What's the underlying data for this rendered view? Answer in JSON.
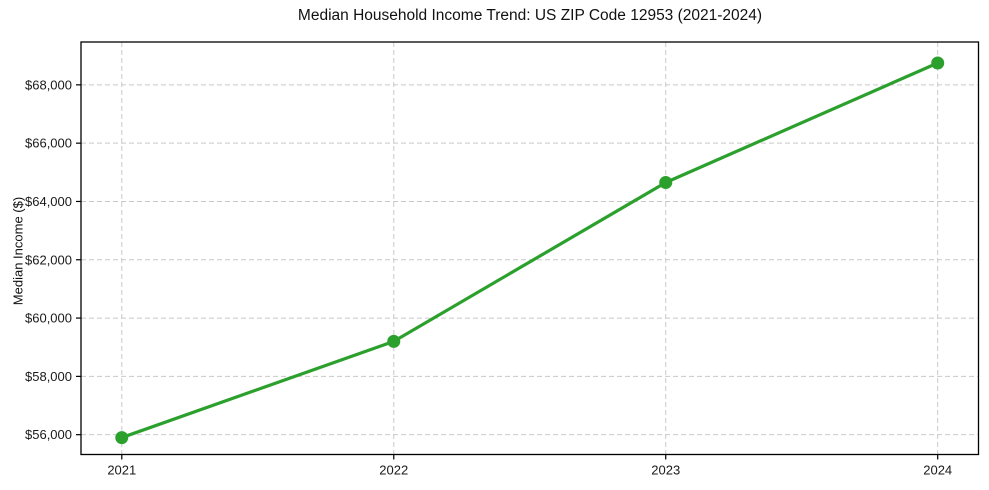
{
  "figure": {
    "background": "#ffffff"
  },
  "chart_data": {
    "type": "line",
    "title": "Median Household Income Trend: US ZIP Code 12953 (2021-2024)",
    "xlabel": "",
    "ylabel": "Median Income ($)",
    "x": [
      2021,
      2022,
      2023,
      2024
    ],
    "xtick_labels": [
      "2021",
      "2022",
      "2023",
      "2024"
    ],
    "series": [
      {
        "name": "Median Household Income",
        "values": [
          55900,
          59200,
          64650,
          68750
        ],
        "color": "#2ca02c",
        "marker": "circle",
        "line_style": "solid"
      }
    ],
    "yticks": [
      56000,
      58000,
      60000,
      62000,
      64000,
      66000,
      68000
    ],
    "ytick_labels": [
      "$56,000",
      "$58,000",
      "$60,000",
      "$62,000",
      "$64,000",
      "$66,000",
      "$68,000"
    ],
    "xlim": [
      2020.85,
      2024.15
    ],
    "ylim": [
      55320,
      69470
    ],
    "grid": true,
    "grid_style": "dashed",
    "legend": "none",
    "axis_color": "#000000",
    "grid_color": "#c9c9c9",
    "text_color": "#1a1a1a"
  }
}
